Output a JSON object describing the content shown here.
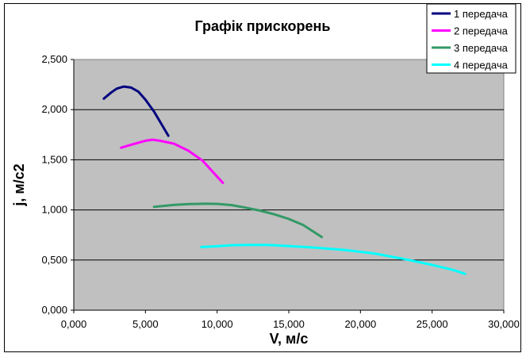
{
  "chart_data": {
    "type": "line",
    "title": "Графік прискорень",
    "xlabel": "V, м/с",
    "ylabel": "j, м/с2",
    "xlim": [
      0,
      30000
    ],
    "ylim": [
      0,
      2500
    ],
    "x_ticks": [
      "0,000",
      "5,000",
      "10,000",
      "15,000",
      "20,000",
      "25,000",
      "30,000"
    ],
    "y_ticks": [
      "0,000",
      "0,500",
      "1,000",
      "1,500",
      "2,000",
      "2,500"
    ],
    "grid": true,
    "legend_position": "top-right",
    "plot_background": "#c0c0c0",
    "series": [
      {
        "name": "1 передача",
        "color": "#000080",
        "x": [
          2100,
          2600,
          3000,
          3500,
          4000,
          4500,
          5000,
          5600,
          6100,
          6600
        ],
        "y": [
          2110,
          2170,
          2210,
          2230,
          2220,
          2180,
          2100,
          1980,
          1860,
          1740
        ]
      },
      {
        "name": "2 передача",
        "color": "#ff00ff",
        "x": [
          3300,
          4000,
          5000,
          5500,
          6000,
          7000,
          8000,
          9000,
          9700,
          10400
        ],
        "y": [
          1620,
          1650,
          1690,
          1700,
          1690,
          1660,
          1590,
          1490,
          1380,
          1270
        ]
      },
      {
        "name": "3 передача",
        "color": "#339966",
        "x": [
          5600,
          7000,
          8000,
          9000,
          10000,
          11000,
          12000,
          13000,
          14000,
          15000,
          16000,
          17300
        ],
        "y": [
          1030,
          1050,
          1058,
          1062,
          1060,
          1048,
          1022,
          993,
          956,
          910,
          850,
          730
        ]
      },
      {
        "name": "4 передача",
        "color": "#00ffff",
        "x": [
          8900,
          10000,
          11000,
          12000,
          13500,
          15000,
          17000,
          19000,
          21000,
          23000,
          25000,
          26500,
          27300
        ],
        "y": [
          630,
          638,
          648,
          650,
          650,
          640,
          622,
          600,
          565,
          512,
          452,
          400,
          362
        ]
      }
    ]
  }
}
